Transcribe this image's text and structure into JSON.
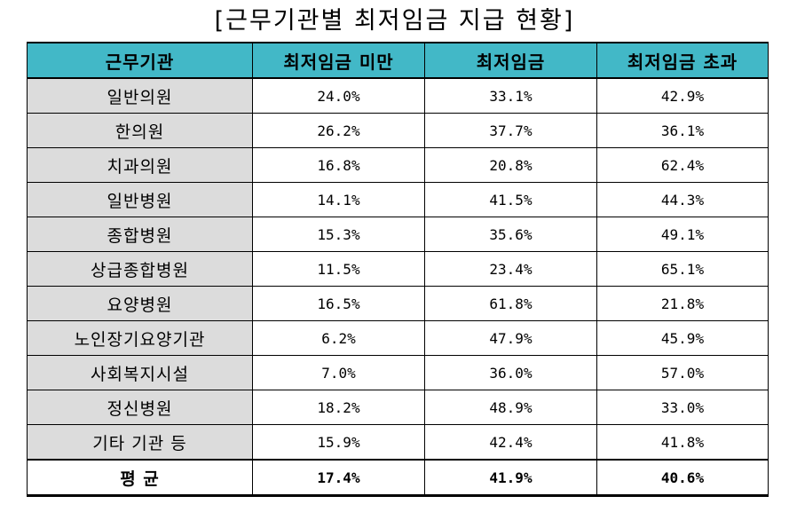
{
  "title": "[근무기관별 최저임금 지급 현황]",
  "table": {
    "headers": [
      "근무기관",
      "최저임금 미만",
      "최저임금",
      "최저임금 초과"
    ],
    "rows": [
      [
        "일반의원",
        "24.0%",
        "33.1%",
        "42.9%"
      ],
      [
        "한의원",
        "26.2%",
        "37.7%",
        "36.1%"
      ],
      [
        "치과의원",
        "16.8%",
        "20.8%",
        "62.4%"
      ],
      [
        "일반병원",
        "14.1%",
        "41.5%",
        "44.3%"
      ],
      [
        "종합병원",
        "15.3%",
        "35.6%",
        "49.1%"
      ],
      [
        "상급종합병원",
        "11.5%",
        "23.4%",
        "65.1%"
      ],
      [
        "요양병원",
        "16.5%",
        "61.8%",
        "21.8%"
      ],
      [
        "노인장기요양기관",
        "6.2%",
        "47.9%",
        "45.9%"
      ],
      [
        "사회복지시설",
        "7.0%",
        "36.0%",
        "57.0%"
      ],
      [
        "정신병원",
        "18.2%",
        "48.9%",
        "33.0%"
      ],
      [
        "기타 기관 등",
        "15.9%",
        "42.4%",
        "41.8%"
      ]
    ],
    "average": [
      "평 균",
      "17.4%",
      "41.9%",
      "40.6%"
    ]
  },
  "colors": {
    "header_bg": "#42b8c7",
    "label_bg": "#dcdcdc"
  }
}
